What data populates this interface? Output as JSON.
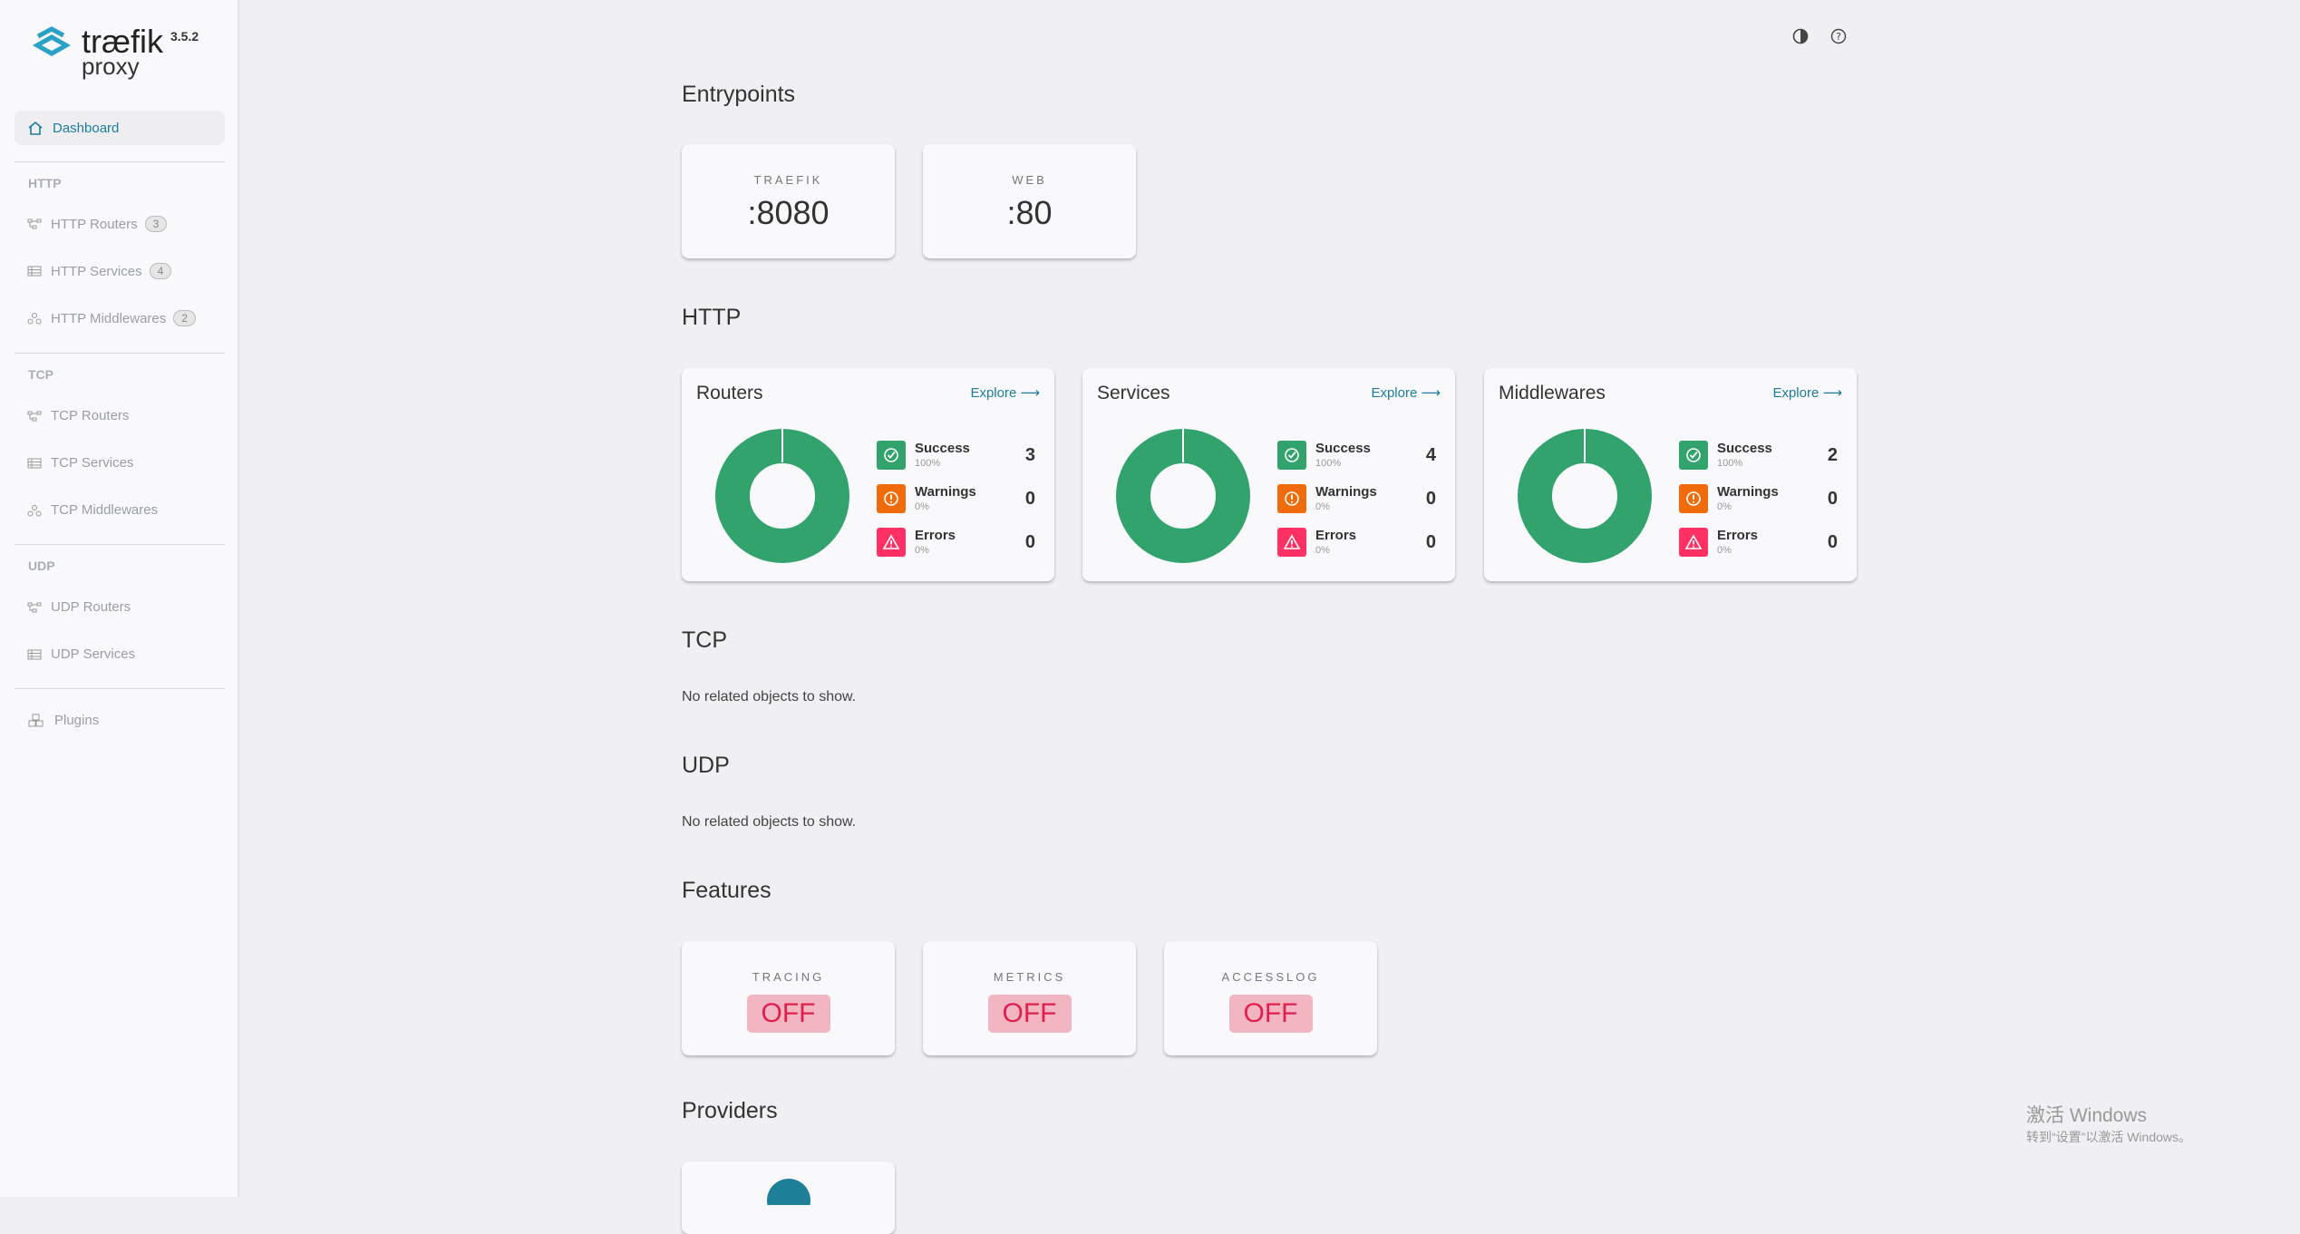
{
  "app": {
    "logo_word": "træfik",
    "logo_sub": "proxy",
    "version": "3.5.2"
  },
  "sidebar": {
    "dashboard": "Dashboard",
    "sections": [
      {
        "title": "HTTP",
        "items": [
          {
            "label": "HTTP Routers",
            "count": "3"
          },
          {
            "label": "HTTP Services",
            "count": "4"
          },
          {
            "label": "HTTP Middlewares",
            "count": "2"
          }
        ]
      },
      {
        "title": "TCP",
        "items": [
          {
            "label": "TCP Routers"
          },
          {
            "label": "TCP Services"
          },
          {
            "label": "TCP Middlewares"
          }
        ]
      },
      {
        "title": "UDP",
        "items": [
          {
            "label": "UDP Routers"
          },
          {
            "label": "UDP Services"
          }
        ]
      }
    ],
    "plugins": "Plugins"
  },
  "main": {
    "entrypoints_title": "Entrypoints",
    "entrypoints": [
      {
        "name": "TRAEFIK",
        "value": ":8080"
      },
      {
        "name": "WEB",
        "value": ":80"
      }
    ],
    "http_title": "HTTP",
    "http_cards": [
      {
        "title": "Routers",
        "explore": "Explore",
        "success": "3",
        "warnings": "0",
        "errors": "0",
        "success_pct": "100%",
        "warnings_pct": "0%",
        "errors_pct": "0%"
      },
      {
        "title": "Services",
        "explore": "Explore",
        "success": "4",
        "warnings": "0",
        "errors": "0",
        "success_pct": "100%",
        "warnings_pct": "0%",
        "errors_pct": "0%"
      },
      {
        "title": "Middlewares",
        "explore": "Explore",
        "success": "2",
        "warnings": "0",
        "errors": "0",
        "success_pct": "100%",
        "warnings_pct": "0%",
        "errors_pct": "0%"
      }
    ],
    "labels": {
      "success": "Success",
      "warnings": "Warnings",
      "errors": "Errors"
    },
    "tcp_title": "TCP",
    "tcp_empty": "No related objects to show.",
    "udp_title": "UDP",
    "udp_empty": "No related objects to show.",
    "features_title": "Features",
    "features": [
      {
        "name": "TRACING",
        "value": "OFF"
      },
      {
        "name": "METRICS",
        "value": "OFF"
      },
      {
        "name": "ACCESSLOG",
        "value": "OFF"
      }
    ],
    "providers_title": "Providers"
  },
  "watermark": {
    "line1": "激活 Windows",
    "line2": "转到“设置”以激活 Windows。"
  },
  "colors": {
    "success": "#32a36d",
    "warning": "#f06b0b",
    "error": "#ff3164",
    "accent": "#1b7d9c"
  }
}
